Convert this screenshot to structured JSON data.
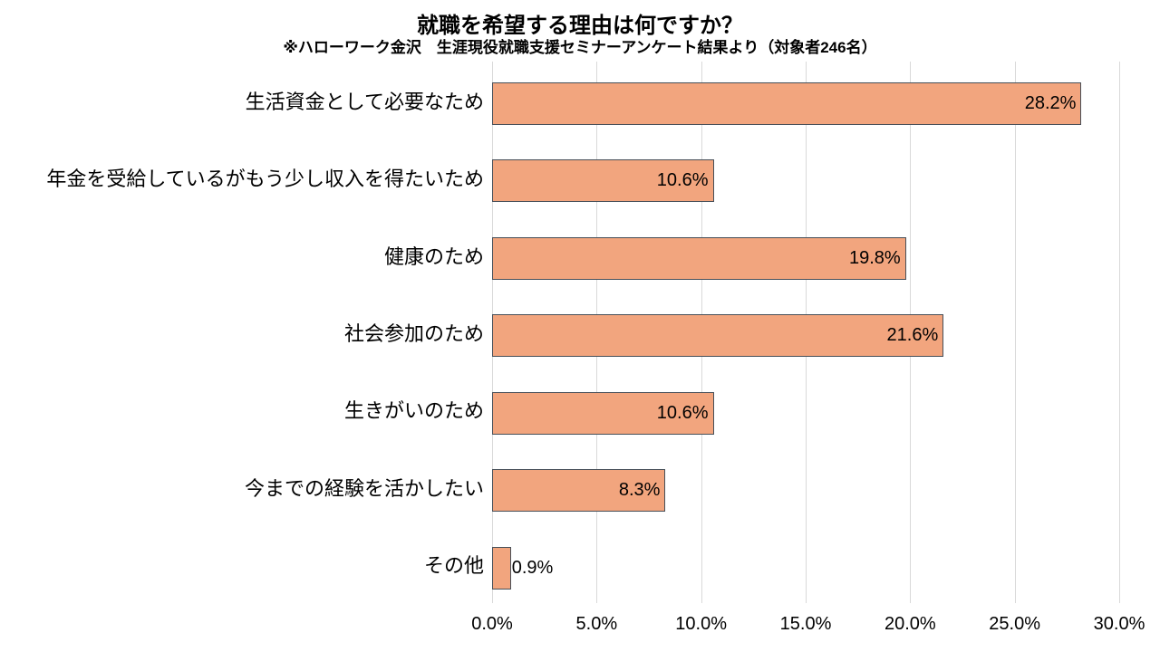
{
  "chart": {
    "title": "就職を希望する理由は何ですか？",
    "subtitle": "※ハローワーク金沢　生涯現役就職支援セミナーアンケート結果より（対象者246名）"
  },
  "chart_data": {
    "type": "bar",
    "orientation": "horizontal",
    "title": "就職を希望する理由は何ですか？",
    "subtitle": "※ハローワーク金沢　生涯現役就職支援セミナーアンケート結果より（対象者246名）",
    "categories": [
      "生活資金として必要なため",
      "年金を受給しているがもう少し収入を得たいため",
      "健康のため",
      "社会参加のため",
      "生きがいのため",
      "今までの経験を活かしたい",
      "その他"
    ],
    "values": [
      28.2,
      10.6,
      19.8,
      21.6,
      10.6,
      8.3,
      0.9
    ],
    "value_labels": [
      "28.2%",
      "10.6%",
      "19.8%",
      "21.6%",
      "10.6%",
      "8.3%",
      "0.9%"
    ],
    "x_tick_labels": [
      "0.0%",
      "5.0%",
      "10.0%",
      "15.0%",
      "20.0%",
      "25.0%",
      "30.0%"
    ],
    "xlim": [
      0,
      30
    ],
    "xlabel": "",
    "ylabel": "",
    "grid": "vertical",
    "legend": "none",
    "colors": {
      "bar_fill": "#F2A57E",
      "bar_border": "#474F58",
      "gridline": "#D9D9D9",
      "text": "#000000",
      "background": "#FFFFFF"
    }
  }
}
